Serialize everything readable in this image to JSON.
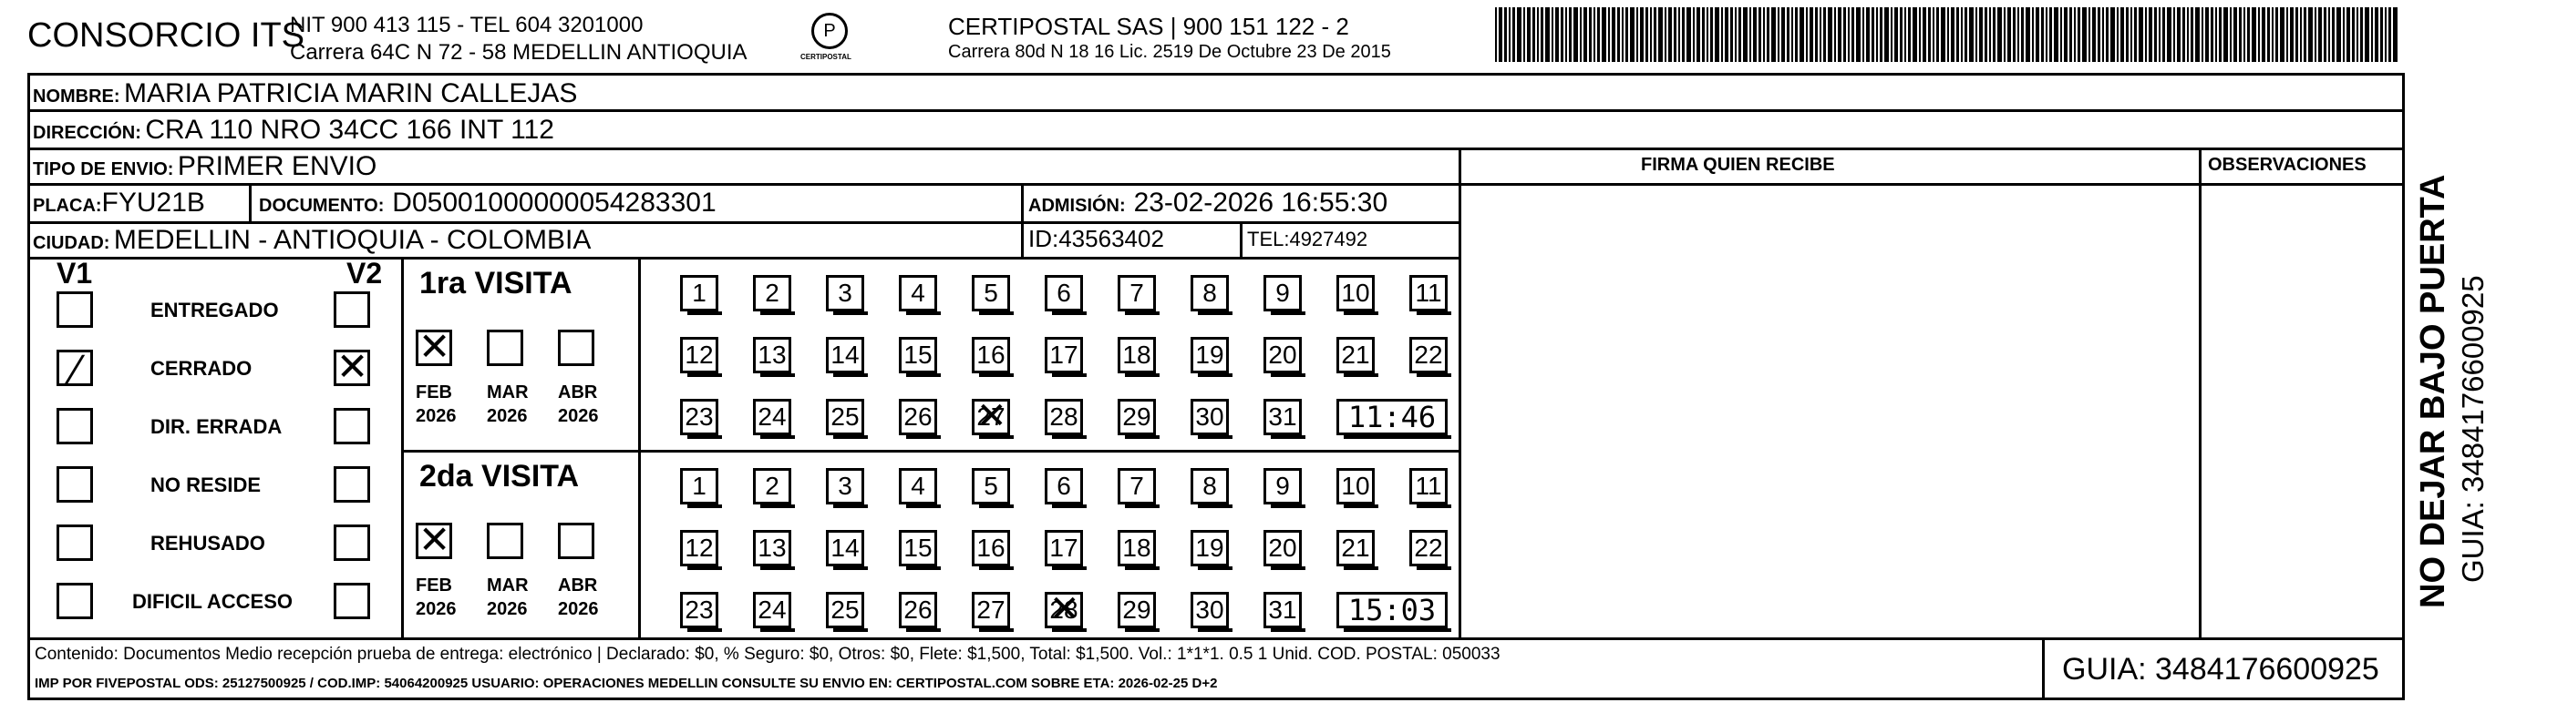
{
  "header": {
    "company": "CONSORCIO ITS",
    "nit": "NIT 900 413 115 - TEL 604 3201000",
    "address": "Carrera 64C N 72 - 58 MEDELLIN ANTIOQUIA",
    "carrier": "CERTIPOSTAL SAS | 900 151 122 - 2",
    "carrier_address": "Carrera 80d N 18 16  Lic. 2519 De Octubre 23 De 2015",
    "logo_text": "CERTIPOSTAL"
  },
  "fields": {
    "nombre_label": "NOMBRE:",
    "nombre": "MARIA PATRICIA MARIN CALLEJAS",
    "direccion_label": "DIRECCIÓN:",
    "direccion": "CRA 110 NRO 34CC 166 INT 112",
    "tipo_label": "TIPO DE ENVIO:",
    "tipo": "PRIMER ENVIO",
    "placa_label": "PLACA:",
    "placa": "FYU21B",
    "documento_label": "DOCUMENTO:",
    "documento": "D05001000000054283301",
    "admision_label": "ADMISIÓN:",
    "admision": "23-02-2026 16:55:30",
    "ciudad_label": "CIUDAD:",
    "ciudad": "MEDELLIN - ANTIOQUIA - COLOMBIA",
    "id": "ID:43563402",
    "tel": "TEL:4927492"
  },
  "signature": {
    "firma_label": "FIRMA QUIEN RECIBE",
    "observaciones_label": "OBSERVACIONES"
  },
  "status": {
    "v1": "V1",
    "v2": "V2",
    "options": [
      {
        "label": "ENTREGADO",
        "v1": false,
        "v2": false
      },
      {
        "label": "CERRADO",
        "v1": true,
        "v2": true
      },
      {
        "label": "DIR. ERRADA",
        "v1": false,
        "v2": false
      },
      {
        "label": "NO RESIDE",
        "v1": false,
        "v2": false
      },
      {
        "label": "REHUSADO",
        "v1": false,
        "v2": false
      },
      {
        "label": "DIFICIL ACCESO",
        "v1": false,
        "v2": false
      }
    ]
  },
  "visits": [
    {
      "title": "1ra VISITA",
      "months": [
        {
          "m": "FEB",
          "y": "2026",
          "checked": true
        },
        {
          "m": "MAR",
          "y": "2026",
          "checked": false
        },
        {
          "m": "ABR",
          "y": "2026",
          "checked": false
        }
      ],
      "marked_day": 27,
      "time": "11:46"
    },
    {
      "title": "2da VISITA",
      "months": [
        {
          "m": "FEB",
          "y": "2026",
          "checked": true
        },
        {
          "m": "MAR",
          "y": "2026",
          "checked": false
        },
        {
          "m": "ABR",
          "y": "2026",
          "checked": false
        }
      ],
      "marked_day": 28,
      "time": "15:03"
    }
  ],
  "footer": {
    "line1": "Contenido: Documentos Medio recepción prueba de entrega: electrónico | Declarado: $0, % Seguro: $0, Otros: $0, Flete: $1,500, Total: $1,500. Vol.: 1*1*1. 0.5  1 Unid. COD. POSTAL: 050033",
    "line2": "IMP POR FIVEPOSTAL ODS: 25127500925 / COD.IMP: 54064200925 USUARIO: OPERACIONES MEDELLIN CONSULTE SU ENVIO EN: CERTIPOSTAL.COM SOBRE ETA: 2026-02-25 D+2",
    "guia": "GUIA: 3484176600925"
  },
  "side": {
    "warning": "NO DEJAR BAJO PUERTA",
    "guia": "GUIA: 3484176600925"
  }
}
